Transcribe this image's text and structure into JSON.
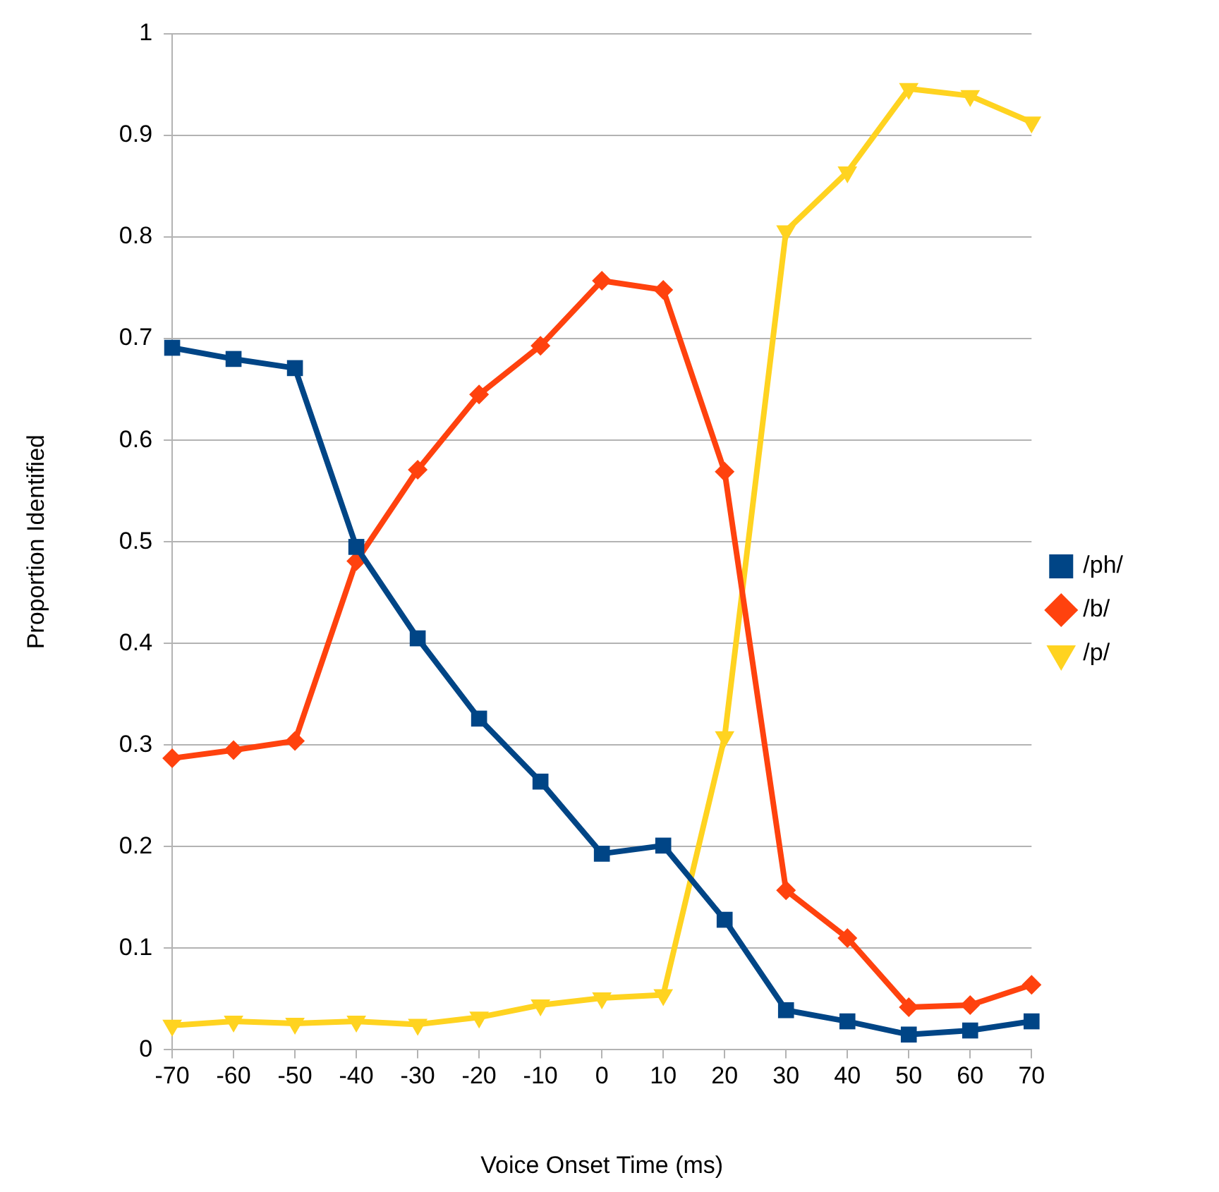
{
  "chart_data": {
    "type": "line",
    "xlabel": "Voice Onset Time (ms)",
    "ylabel": "Proportion Identified",
    "x": [
      -70,
      -60,
      -50,
      -40,
      -30,
      -20,
      -10,
      0,
      10,
      20,
      30,
      40,
      50,
      60,
      70
    ],
    "xlim": [
      -70,
      70
    ],
    "xticks": [
      -70,
      -60,
      -50,
      -40,
      -30,
      -20,
      -10,
      0,
      10,
      20,
      30,
      40,
      50,
      60,
      70
    ],
    "ylim": [
      0,
      1
    ],
    "yticks": [
      0,
      0.1,
      0.2,
      0.3,
      0.4,
      0.5,
      0.6,
      0.7,
      0.8,
      0.9,
      1
    ],
    "grid": "y",
    "legend": "right",
    "line_style": "solid",
    "series": [
      {
        "name": "/ph/",
        "color": "#004586",
        "marker": "square",
        "values": [
          0.691,
          0.68,
          0.671,
          0.495,
          0.405,
          0.326,
          0.264,
          0.193,
          0.201,
          0.128,
          0.039,
          0.028,
          0.015,
          0.019,
          0.028
        ]
      },
      {
        "name": "/b/",
        "color": "#ff420e",
        "marker": "diamond",
        "values": [
          0.287,
          0.295,
          0.304,
          0.481,
          0.571,
          0.645,
          0.693,
          0.757,
          0.748,
          0.569,
          0.157,
          0.11,
          0.042,
          0.044,
          0.064
        ]
      },
      {
        "name": "/p/",
        "color": "#ffd320",
        "marker": "triangle",
        "values": [
          0.024,
          0.028,
          0.026,
          0.028,
          0.025,
          0.032,
          0.044,
          0.051,
          0.054,
          0.308,
          0.806,
          0.864,
          0.946,
          0.939,
          0.913
        ]
      }
    ]
  }
}
